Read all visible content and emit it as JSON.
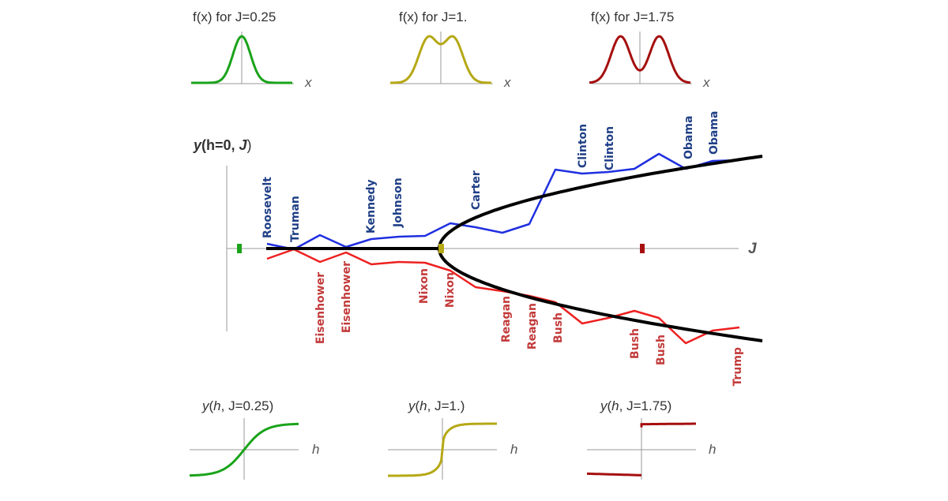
{
  "colors": {
    "green": "#1aa31a",
    "olive": "#b5a815",
    "darkred": "#a50f0f",
    "blue": "#1f2fe0",
    "red": "#ee2020",
    "blueLabel": "#1f3f86",
    "redLabel": "#c33b3b",
    "black": "#000000"
  },
  "top_panels": [
    {
      "title": "f(x) for J=0.25",
      "xlabel": "x",
      "J": 0.25
    },
    {
      "title": "f(x) for J=1.",
      "xlabel": "x",
      "J": 1.0
    },
    {
      "title": "f(x) for J=1.75",
      "xlabel": "x",
      "J": 1.75
    }
  ],
  "bottom_panels": [
    {
      "title_y": "y",
      "title_open": "(",
      "title_h": "h",
      "title_rest": ", J=0.25)",
      "xlabel": "h",
      "J": 0.25
    },
    {
      "title_y": "y",
      "title_open": "(",
      "title_h": "h",
      "title_rest": ", J=1.)",
      "xlabel": "h",
      "J": 1.0
    },
    {
      "title_y": "y",
      "title_open": "(",
      "title_h": "h",
      "title_rest": ", J=1.75)",
      "xlabel": "h",
      "J": 1.75
    }
  ],
  "main": {
    "ylabel_y": "y",
    "ylabel_mid": "(h=0, ",
    "ylabel_J": "J",
    "ylabel_close": ")",
    "xlabel": "J",
    "blue_labels": [
      "Roosevelt",
      "Truman",
      "Kennedy",
      "Johnson",
      "Carter",
      "Clinton",
      "Clinton",
      "Obama",
      "Obama"
    ],
    "red_labels": [
      "Eisenhower",
      "Eisenhower",
      "Nixon",
      "Nixon",
      "Reagan",
      "Reagan",
      "Bush",
      "Bush",
      "Bush",
      "Trump"
    ]
  }
}
